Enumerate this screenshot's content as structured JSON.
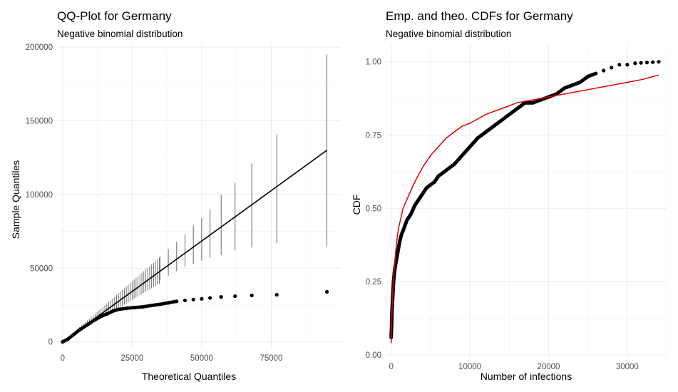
{
  "chart_data": [
    {
      "type": "scatter",
      "title": "QQ-Plot for Germany",
      "subtitle": "Negative binomial distribution",
      "xlabel": "Theoretical Quantiles",
      "ylabel": "Sample Quantiles",
      "xlim": [
        -2000,
        100000
      ],
      "ylim": [
        -5000,
        202000
      ],
      "x_ticks": [
        0,
        25000,
        50000,
        75000
      ],
      "x_tick_labels": [
        "0",
        "25000",
        "50000",
        "75000"
      ],
      "y_ticks": [
        0,
        50000,
        100000,
        150000,
        200000
      ],
      "y_tick_labels": [
        "0",
        "50000",
        "100000",
        "150000",
        "200000"
      ],
      "reference_line": {
        "x": [
          0,
          95000
        ],
        "y": [
          0,
          130000
        ],
        "color": "#000000"
      },
      "band_color": "#666666",
      "point_color": "#000000",
      "upper_points": [
        [
          95000,
          34000
        ],
        [
          77000,
          32000
        ],
        [
          68000,
          31500
        ],
        [
          62000,
          31000
        ],
        [
          57000,
          30500
        ],
        [
          53000,
          29800
        ],
        [
          50000,
          29200
        ],
        [
          47000,
          28700
        ],
        [
          44000,
          28100
        ],
        [
          41000,
          27500
        ],
        [
          38000,
          26500
        ],
        [
          35000,
          25500
        ],
        [
          32000,
          24700
        ],
        [
          29000,
          23800
        ],
        [
          26000,
          23300
        ],
        [
          23000,
          22800
        ],
        [
          20000,
          22000
        ],
        [
          18000,
          20800
        ],
        [
          16000,
          19000
        ],
        [
          14000,
          17500
        ],
        [
          12000,
          15500
        ],
        [
          10000,
          13000
        ],
        [
          8000,
          10500
        ],
        [
          6000,
          8000
        ],
        [
          4000,
          5000
        ],
        [
          2000,
          2000
        ],
        [
          0,
          0
        ]
      ],
      "bands": [
        {
          "x": 95000,
          "lo": 65000,
          "hi": 195000
        },
        {
          "x": 77000,
          "lo": 67000,
          "hi": 141000
        },
        {
          "x": 68000,
          "lo": 64000,
          "hi": 121000
        },
        {
          "x": 62000,
          "lo": 62000,
          "hi": 108000
        },
        {
          "x": 57000,
          "lo": 59000,
          "hi": 100000
        },
        {
          "x": 53000,
          "lo": 57000,
          "hi": 90000
        },
        {
          "x": 50000,
          "lo": 55000,
          "hi": 84000
        },
        {
          "x": 47000,
          "lo": 53000,
          "hi": 79000
        },
        {
          "x": 44000,
          "lo": 51000,
          "hi": 73000
        },
        {
          "x": 41000,
          "lo": 48000,
          "hi": 68000
        },
        {
          "x": 38000,
          "lo": 45000,
          "hi": 63000
        },
        {
          "x": 35000,
          "lo": 42000,
          "hi": 58000
        }
      ],
      "band_fill_until": 35000
    },
    {
      "type": "line",
      "title": "Emp. and theo. CDFs for Germany",
      "subtitle": "Negative binomial distribution",
      "xlabel": "Number of infections",
      "ylabel": "CDF",
      "xlim": [
        -700,
        35000
      ],
      "ylim": [
        -0.01,
        1.06
      ],
      "x_ticks": [
        0,
        10000,
        20000,
        30000
      ],
      "x_tick_labels": [
        "0",
        "10000",
        "20000",
        "30000"
      ],
      "y_ticks": [
        0,
        0.25,
        0.5,
        0.75,
        1.0
      ],
      "y_tick_labels": [
        "0.00",
        "0.25",
        "0.50",
        "0.75",
        "1.00"
      ],
      "series": [
        {
          "kind": "points",
          "color": "#000000",
          "points": [
            [
              0,
              0.06
            ],
            [
              50,
              0.1
            ],
            [
              100,
              0.15
            ],
            [
              200,
              0.2
            ],
            [
              300,
              0.25
            ],
            [
              400,
              0.28
            ],
            [
              500,
              0.3
            ],
            [
              700,
              0.33
            ],
            [
              900,
              0.36
            ],
            [
              1100,
              0.39
            ],
            [
              1300,
              0.41
            ],
            [
              1600,
              0.43
            ],
            [
              2000,
              0.46
            ],
            [
              2500,
              0.48
            ],
            [
              3000,
              0.51
            ],
            [
              3500,
              0.53
            ],
            [
              4000,
              0.55
            ],
            [
              4500,
              0.57
            ],
            [
              5000,
              0.58
            ],
            [
              5500,
              0.59
            ],
            [
              6000,
              0.61
            ],
            [
              6500,
              0.62
            ],
            [
              7000,
              0.63
            ],
            [
              8000,
              0.65
            ],
            [
              9000,
              0.68
            ],
            [
              10000,
              0.71
            ],
            [
              11000,
              0.74
            ],
            [
              12000,
              0.76
            ],
            [
              13000,
              0.78
            ],
            [
              14000,
              0.8
            ],
            [
              15000,
              0.82
            ],
            [
              16000,
              0.84
            ],
            [
              17000,
              0.86
            ],
            [
              18000,
              0.86
            ],
            [
              19000,
              0.87
            ],
            [
              20000,
              0.88
            ],
            [
              21000,
              0.89
            ],
            [
              22000,
              0.91
            ],
            [
              23000,
              0.92
            ],
            [
              24000,
              0.93
            ],
            [
              25000,
              0.95
            ],
            [
              26000,
              0.96
            ],
            [
              27000,
              0.97
            ],
            [
              28000,
              0.98
            ],
            [
              29000,
              0.99
            ],
            [
              30000,
              0.99
            ],
            [
              31000,
              0.995
            ],
            [
              34000,
              1.0
            ]
          ]
        },
        {
          "kind": "line",
          "color": "#dd0000",
          "points": [
            [
              0,
              0.04
            ],
            [
              100,
              0.15
            ],
            [
              200,
              0.22
            ],
            [
              400,
              0.3
            ],
            [
              600,
              0.36
            ],
            [
              800,
              0.41
            ],
            [
              1000,
              0.44
            ],
            [
              1500,
              0.5
            ],
            [
              2000,
              0.53
            ],
            [
              2500,
              0.56
            ],
            [
              3000,
              0.59
            ],
            [
              4000,
              0.64
            ],
            [
              5000,
              0.68
            ],
            [
              6000,
              0.71
            ],
            [
              7000,
              0.74
            ],
            [
              8000,
              0.76
            ],
            [
              9000,
              0.78
            ],
            [
              10000,
              0.79
            ],
            [
              12000,
              0.82
            ],
            [
              14000,
              0.84
            ],
            [
              16000,
              0.86
            ],
            [
              18000,
              0.87
            ],
            [
              20000,
              0.88
            ],
            [
              22000,
              0.89
            ],
            [
              24000,
              0.9
            ],
            [
              26000,
              0.91
            ],
            [
              28000,
              0.92
            ],
            [
              30000,
              0.93
            ],
            [
              32000,
              0.94
            ],
            [
              34000,
              0.955
            ]
          ]
        }
      ]
    }
  ]
}
